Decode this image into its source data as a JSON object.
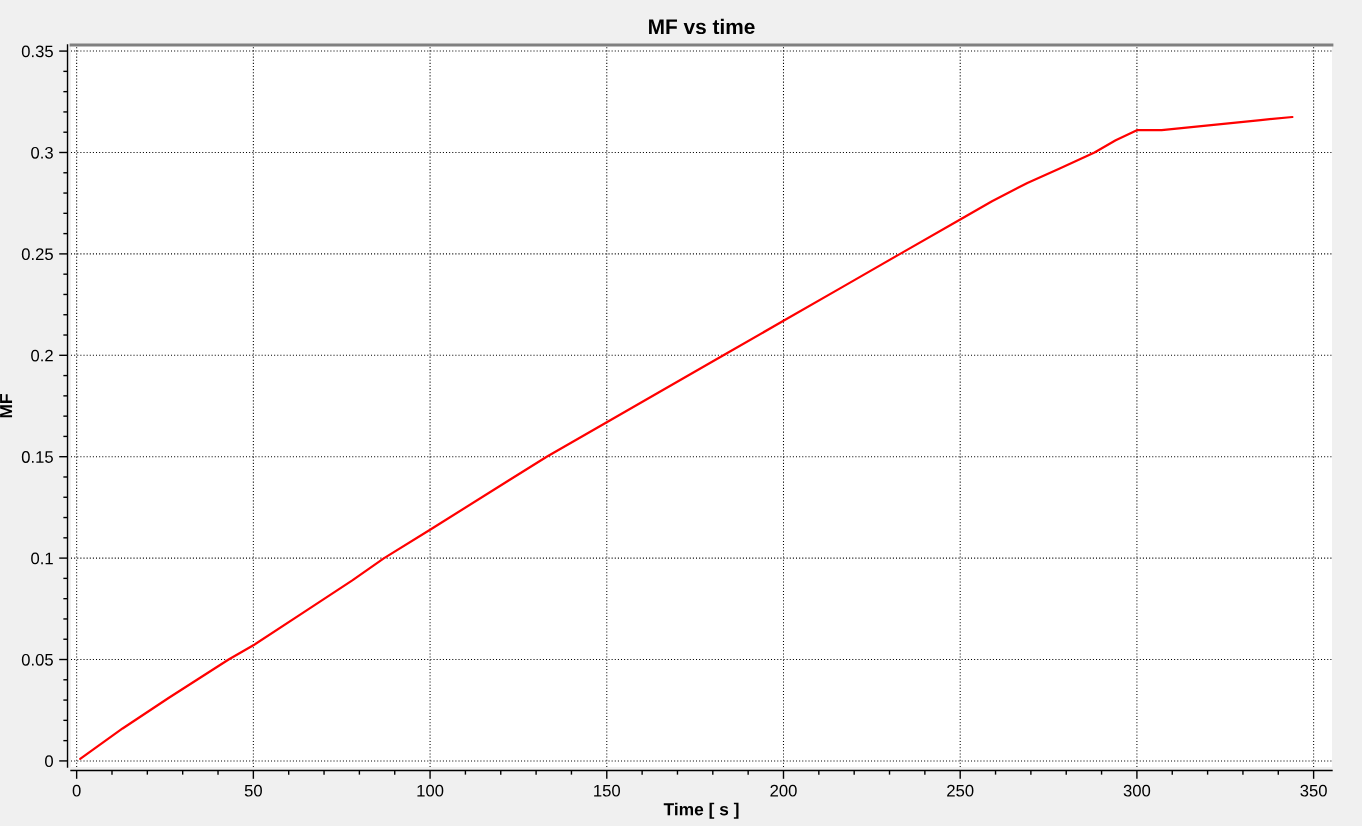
{
  "chart_data": {
    "type": "line",
    "title": "MF vs time",
    "xlabel": "Time [ s ]",
    "ylabel": "MF",
    "x": [
      1,
      13,
      26,
      43,
      50,
      64,
      78,
      87,
      100,
      133,
      150,
      166,
      183,
      200,
      216,
      233,
      250,
      259,
      269,
      278,
      288,
      294,
      300,
      307,
      321,
      335,
      344
    ],
    "series": [
      {
        "color": "#ff0000",
        "values": [
          0.001,
          0.016,
          0.031,
          0.05,
          0.057,
          0.073,
          0.089,
          0.1,
          0.114,
          0.15,
          0.167,
          0.183,
          0.2,
          0.217,
          0.233,
          0.25,
          0.267,
          0.276,
          0.285,
          0.292,
          0.3,
          0.306,
          0.311,
          0.311,
          0.3135,
          0.316,
          0.3175
        ]
      }
    ],
    "xlim": [
      -1.6,
      355.2
    ],
    "ylim": [
      -0.003,
      0.353
    ],
    "xticks": [
      0,
      50,
      100,
      150,
      200,
      250,
      300,
      350
    ],
    "yticks": [
      0,
      0.05,
      0.1,
      0.15,
      0.2,
      0.25,
      0.3,
      0.35
    ],
    "grid": true
  }
}
